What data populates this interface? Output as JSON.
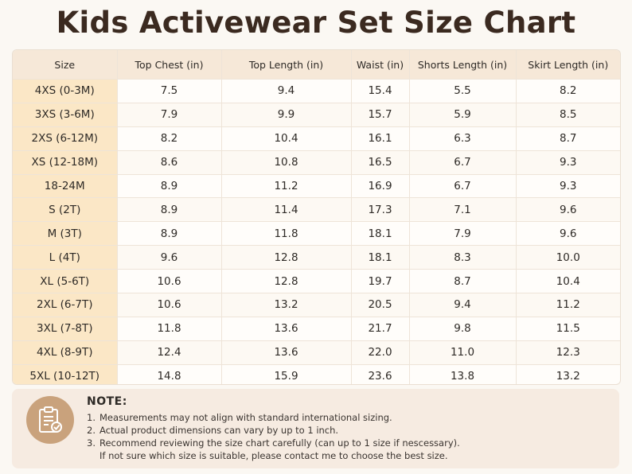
{
  "title": "Kids Activewear Set Size Chart",
  "table": {
    "headers": [
      "Size",
      "Top Chest (in)",
      "Top Length (in)",
      "Waist (in)",
      "Shorts Length (in)",
      "Skirt Length (in)"
    ],
    "rows": [
      [
        "4XS (0-3M)",
        "7.5",
        "9.4",
        "15.4",
        "5.5",
        "8.2"
      ],
      [
        "3XS (3-6M)",
        "7.9",
        "9.9",
        "15.7",
        "5.9",
        "8.5"
      ],
      [
        "2XS (6-12M)",
        "8.2",
        "10.4",
        "16.1",
        "6.3",
        "8.7"
      ],
      [
        "XS (12-18M)",
        "8.6",
        "10.8",
        "16.5",
        "6.7",
        "9.3"
      ],
      [
        "18-24M",
        "8.9",
        "11.2",
        "16.9",
        "6.7",
        "9.3"
      ],
      [
        "S (2T)",
        "8.9",
        "11.4",
        "17.3",
        "7.1",
        "9.6"
      ],
      [
        "M (3T)",
        "8.9",
        "11.8",
        "18.1",
        "7.9",
        "9.6"
      ],
      [
        "L (4T)",
        "9.6",
        "12.8",
        "18.1",
        "8.3",
        "10.0"
      ],
      [
        "XL (5-6T)",
        "10.6",
        "12.8",
        "19.7",
        "8.7",
        "10.4"
      ],
      [
        "2XL (6-7T)",
        "10.6",
        "13.2",
        "20.5",
        "9.4",
        "11.2"
      ],
      [
        "3XL (7-8T)",
        "11.8",
        "13.6",
        "21.7",
        "9.8",
        "11.5"
      ],
      [
        "4XL (8-9T)",
        "12.4",
        "13.6",
        "22.0",
        "11.0",
        "12.3"
      ],
      [
        "5XL (10-12T)",
        "14.8",
        "15.9",
        "23.6",
        "13.8",
        "13.2"
      ]
    ]
  },
  "note": {
    "icon": "clipboard-check-icon",
    "heading": "NOTE:",
    "items": [
      {
        "num": "1.",
        "text": "Measurements may not align with standard international sizing."
      },
      {
        "num": "2.",
        "text": "Actual product dimensions can vary by up to 1 inch."
      },
      {
        "num": "3.",
        "text": "Recommend reviewing the size chart carefully (can up to 1 size if nescessary)."
      }
    ],
    "continuation": "If not sure which size is suitable, please contact me to choose the best size."
  },
  "colors": {
    "header_bg": "#f6e8d8",
    "size_col_bg": "#fbe7c6",
    "icon_bg": "#c9a27c",
    "title": "#3b2a20"
  }
}
